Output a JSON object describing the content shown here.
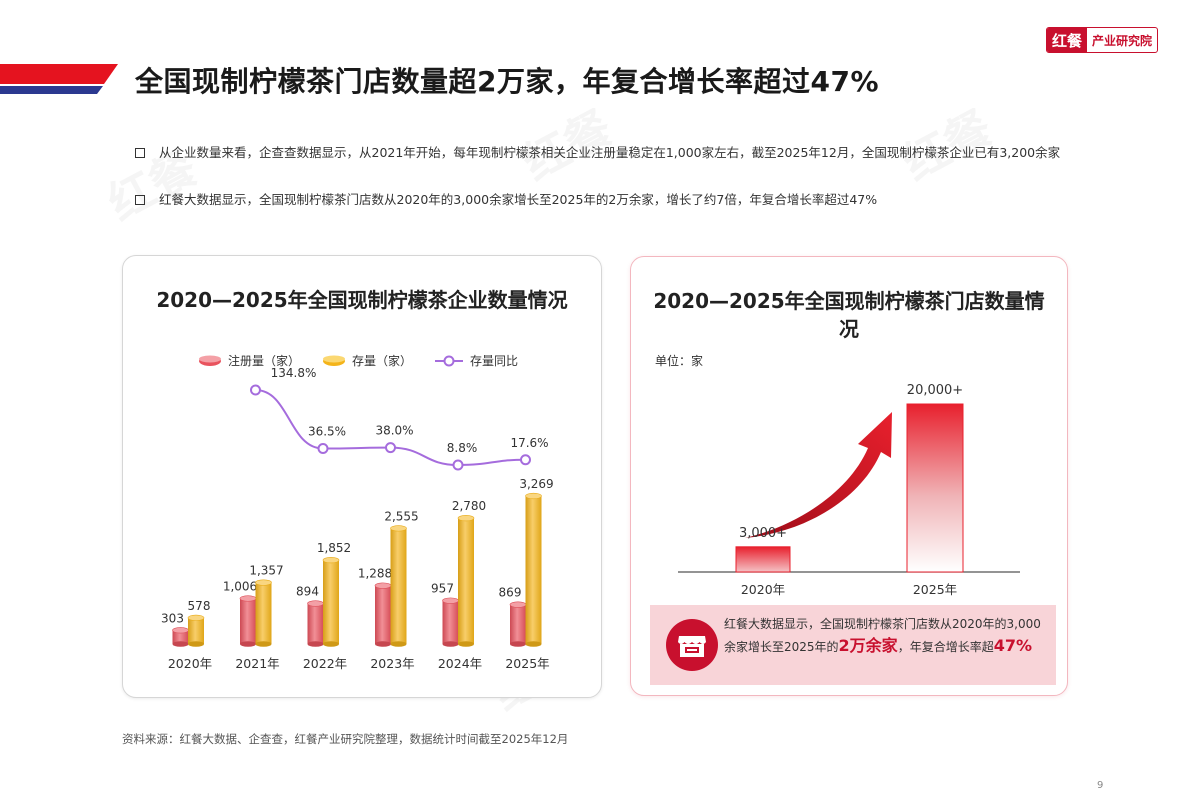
{
  "header": {
    "title": "全国现制柠檬茶门店数量超2万家，年复合增长率超过47%",
    "logo_brand": "红餐",
    "logo_sub": "产业研究院"
  },
  "bullets": [
    "从企业数量来看，企查查数据显示，从2021年开始，每年现制柠檬茶相关企业注册量稳定在1,000家左右，截至2025年12月，全国现制柠檬茶企业已有3,200余家",
    "红餐大数据显示，全国现制柠檬茶门店数从2020年的3,000余家增长至2025年的2万余家，增长了约7倍，年复合增长率超过47%"
  ],
  "left_panel": {
    "title": "2020—2025年全国现制柠檬茶企业数量情况"
  },
  "right_panel": {
    "title": "2020—2025年全国现制柠檬茶门店数量情况",
    "unit": "单位：家"
  },
  "callout": {
    "text_1": "红餐大数据显示，全国现制柠檬茶门店数从2020年的3,000余家增长至2025年的",
    "highlight_1": "2万余家",
    "text_2": "，年复合增长率超",
    "highlight_2": "47%"
  },
  "source_note": "资料来源：红餐大数据、企查查，红餐产业研究院整理，数据统计时间截至2025年12月",
  "page_number": "9",
  "colors": {
    "brand_red": "#c8102e",
    "registered": "#e9535e",
    "stock": "#f4b41a",
    "yoy_line": "#a56cdd"
  },
  "chart_data": [
    {
      "type": "bar",
      "categories": [
        "2020年",
        "2021年",
        "2022年",
        "2023年",
        "2024年",
        "2025年"
      ],
      "series": [
        {
          "name": "注册量（家）",
          "values": [
            303,
            1006,
            894,
            1288,
            957,
            869
          ],
          "labels": [
            "303",
            "1,006",
            "894",
            "1,288",
            "957",
            "869"
          ]
        },
        {
          "name": "存量（家）",
          "values": [
            578,
            1357,
            1852,
            2555,
            2780,
            3269
          ],
          "labels": [
            "578",
            "1,357",
            "1,852",
            "2,555",
            "2,780",
            "3,269"
          ]
        }
      ],
      "line_series": {
        "name": "存量同比",
        "categories": [
          "2021年",
          "2022年",
          "2023年",
          "2024年",
          "2025年"
        ],
        "values": [
          134.8,
          36.5,
          38.0,
          8.8,
          17.6
        ],
        "labels": [
          "134.8%",
          "36.5%",
          "38.0%",
          "8.8%",
          "17.6%"
        ]
      },
      "legend_position": "top"
    },
    {
      "type": "bar",
      "categories": [
        "2020年",
        "2025年"
      ],
      "values": [
        3000,
        20000
      ],
      "labels": [
        "3,000+",
        "20,000+"
      ]
    }
  ]
}
